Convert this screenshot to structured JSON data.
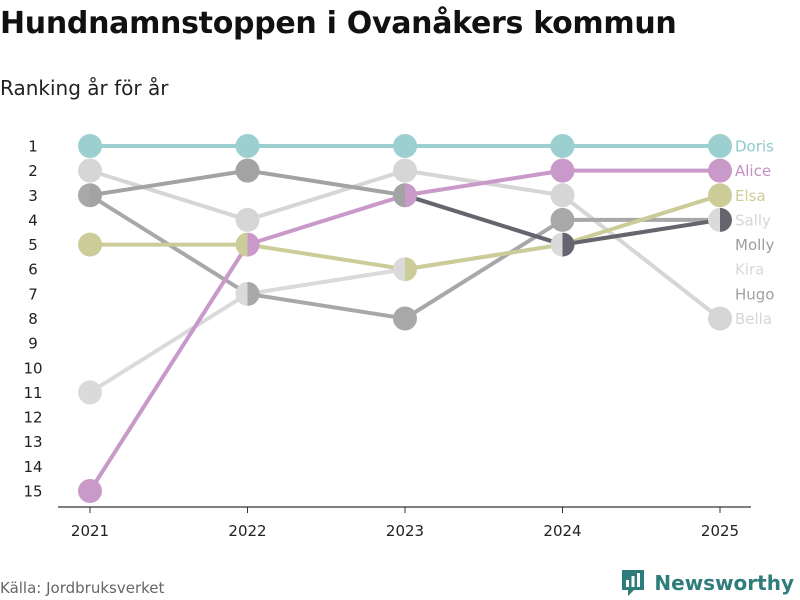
{
  "title": "Hundnamnstoppen i Ovanåkers kommun",
  "subtitle": "Ranking år för år",
  "source": "Källa: Jordbruksverket",
  "brand": "Newsworthy",
  "chart_data": {
    "type": "line",
    "subtype": "bump",
    "title": "Hundnamnstoppen i Ovanåkers kommun",
    "subtitle": "Ranking år för år",
    "xlabel": "",
    "ylabel": "",
    "x": [
      "2021",
      "2022",
      "2023",
      "2024",
      "2025"
    ],
    "y_ticks": [
      1,
      2,
      3,
      4,
      5,
      6,
      7,
      8,
      9,
      10,
      11,
      12,
      13,
      14,
      15
    ],
    "ylim": [
      15,
      1
    ],
    "y_inverted": true,
    "series": [
      {
        "name": "Bella",
        "color": "#d6d6d6",
        "label_color": "#d6d6d6",
        "values": [
          2,
          4,
          2,
          3,
          8
        ]
      },
      {
        "name": "Kira",
        "color": "#dadada",
        "label_color": "#d9d9d9",
        "values": [
          11,
          7,
          6,
          5,
          4
        ]
      },
      {
        "name": "Hugo",
        "color": "#a8a8a8",
        "label_color": "#a0a0a0",
        "values": [
          3,
          7,
          8,
          4,
          4
        ]
      },
      {
        "name": "Molly",
        "color": "#a3a3a3",
        "label_color": "#9c9c9c",
        "values": [
          3,
          2,
          3,
          5,
          4
        ]
      },
      {
        "name": "Elsa",
        "color": "#cccc99",
        "label_color": "#cccc99",
        "values": [
          5,
          5,
          6,
          5,
          3
        ]
      },
      {
        "name": "Sally",
        "color": "#656570",
        "label_color": "#d6d6d6",
        "values": [
          null,
          null,
          3,
          5,
          4
        ]
      },
      {
        "name": "Alice",
        "color": "#c99ac9",
        "label_color": "#c48fc4",
        "values": [
          15,
          5,
          3,
          2,
          2
        ]
      },
      {
        "name": "Doris",
        "color": "#9ccfcf",
        "label_color": "#8fcaca",
        "values": [
          1,
          1,
          1,
          1,
          1
        ]
      }
    ]
  }
}
